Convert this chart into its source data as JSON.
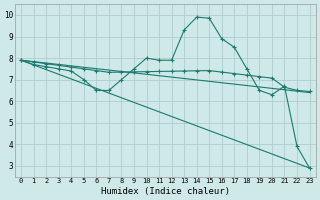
{
  "xlabel": "Humidex (Indice chaleur)",
  "xlim": [
    -0.5,
    23.5
  ],
  "ylim": [
    2.5,
    10.5
  ],
  "yticks": [
    3,
    4,
    5,
    6,
    7,
    8,
    9,
    10
  ],
  "xticks": [
    0,
    1,
    2,
    3,
    4,
    5,
    6,
    7,
    8,
    9,
    10,
    11,
    12,
    13,
    14,
    15,
    16,
    17,
    18,
    19,
    20,
    21,
    22,
    23
  ],
  "background_color": "#cfe8e8",
  "grid_color": "#b0cccc",
  "line_color": "#1a7a6e",
  "line1_x": [
    0,
    1,
    2,
    3,
    4,
    5,
    6,
    7,
    8,
    9,
    10,
    11,
    12,
    13,
    14,
    15,
    16,
    17,
    18,
    19,
    20,
    21,
    22,
    23
  ],
  "line1_y": [
    7.9,
    7.7,
    7.6,
    7.5,
    7.4,
    7.0,
    6.5,
    6.5,
    7.0,
    7.5,
    8.0,
    7.9,
    7.9,
    9.3,
    9.9,
    9.85,
    8.9,
    8.5,
    7.5,
    6.5,
    6.3,
    6.7,
    3.9,
    2.9
  ],
  "line2_x": [
    0,
    1,
    2,
    3,
    4,
    5,
    6,
    7,
    8,
    9,
    10,
    11,
    12,
    13,
    14,
    15,
    16,
    17,
    18,
    19,
    20,
    21,
    22,
    23
  ],
  "line2_y": [
    7.9,
    7.82,
    7.74,
    7.66,
    7.58,
    7.5,
    7.42,
    7.34,
    7.35,
    7.36,
    7.37,
    7.38,
    7.39,
    7.4,
    7.41,
    7.42,
    7.35,
    7.28,
    7.21,
    7.14,
    7.07,
    6.65,
    6.5,
    6.45
  ],
  "line3_x": [
    0,
    23
  ],
  "line3_y": [
    7.9,
    6.4
  ],
  "line4_x": [
    0,
    23
  ],
  "line4_y": [
    7.9,
    2.9
  ]
}
